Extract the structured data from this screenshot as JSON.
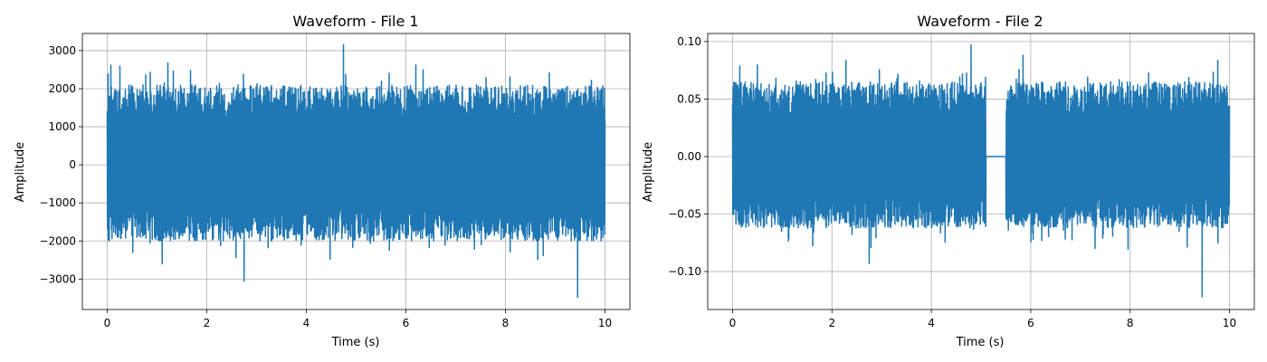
{
  "chart_data": [
    {
      "type": "line",
      "title": "Waveform - File 1",
      "xlabel": "Time (s)",
      "ylabel": "Amplitude",
      "xlim": [
        -0.5,
        10.5
      ],
      "ylim": [
        -3800,
        3450
      ],
      "xticks": [
        0,
        2,
        4,
        6,
        8,
        10
      ],
      "xtick_labels": [
        "0",
        "2",
        "4",
        "6",
        "8",
        "10"
      ],
      "yticks": [
        -3000,
        -2000,
        -1000,
        0,
        1000,
        2000,
        3000
      ],
      "ytick_labels": [
        "−3000",
        "−2000",
        "−1000",
        "0",
        "1000",
        "2000",
        "3000"
      ],
      "grid": true,
      "color": "#1f77b4",
      "series": [
        {
          "x": [
            0,
            10
          ],
          "description": "dense noise-like waveform spanning t = 0 to 10 s",
          "envelope_upper": 2100,
          "envelope_lower": -2000,
          "peak_max": 3150,
          "peak_min": -3480,
          "spikes": [
            {
              "x": 4.75,
              "y": 3150
            },
            {
              "x": 9.45,
              "y": -3480
            },
            {
              "x": 2.75,
              "y": -3050
            },
            {
              "x": 6.2,
              "y": 2620
            },
            {
              "x": 1.1,
              "y": -2600
            }
          ]
        }
      ]
    },
    {
      "type": "line",
      "title": "Waveform - File 2",
      "xlabel": "Time (s)",
      "ylabel": "Amplitude",
      "xlim": [
        -0.5,
        10.5
      ],
      "ylim": [
        -0.133,
        0.107
      ],
      "xticks": [
        0,
        2,
        4,
        6,
        8,
        10
      ],
      "xtick_labels": [
        "0",
        "2",
        "4",
        "6",
        "8",
        "10"
      ],
      "yticks": [
        -0.1,
        -0.05,
        0.0,
        0.05,
        0.1
      ],
      "ytick_labels": [
        "−0.10",
        "−0.05",
        "0.00",
        "0.05",
        "0.10"
      ],
      "grid": true,
      "color": "#1f77b4",
      "series": [
        {
          "x": [
            0,
            10
          ],
          "description": "dense noise-like waveform with a silent gap (amplitude 0) from t = 5.1 to 5.5 s",
          "silent_gap": [
            5.1,
            5.5
          ],
          "envelope_upper": 0.065,
          "envelope_lower": -0.062,
          "peak_max": 0.097,
          "peak_min": -0.122,
          "spikes": [
            {
              "x": 4.8,
              "y": 0.097
            },
            {
              "x": 9.45,
              "y": -0.122
            },
            {
              "x": 2.75,
              "y": -0.093
            },
            {
              "x": 5.85,
              "y": 0.088
            }
          ]
        }
      ]
    }
  ]
}
